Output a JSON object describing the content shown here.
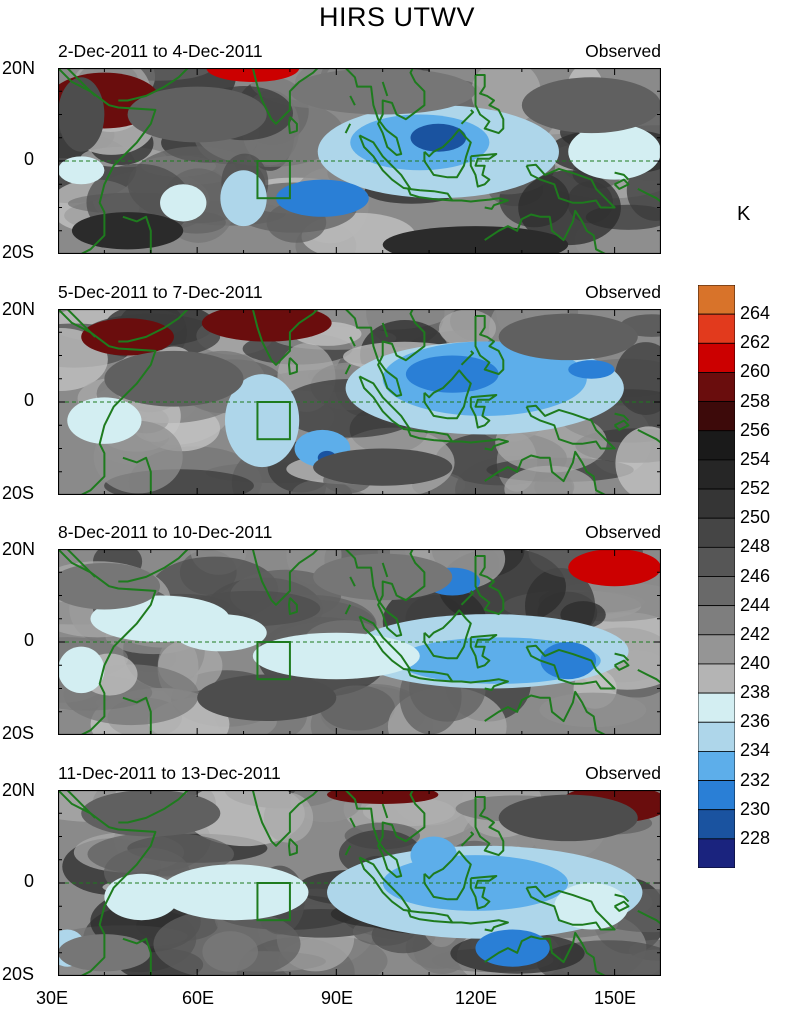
{
  "title": "HIRS UTWV",
  "panels": [
    {
      "date_range": "2-Dec-2011 to 4-Dec-2011",
      "tag": "Observed"
    },
    {
      "date_range": "5-Dec-2011 to 7-Dec-2011",
      "tag": "Observed"
    },
    {
      "date_range": "8-Dec-2011 to 10-Dec-2011",
      "tag": "Observed"
    },
    {
      "date_range": "11-Dec-2011 to 13-Dec-2011",
      "tag": "Observed"
    }
  ],
  "lat_ticks": [
    "20N",
    "0",
    "20S"
  ],
  "lon_ticks": [
    "30E",
    "60E",
    "90E",
    "120E",
    "150E"
  ],
  "colorbar": {
    "unit": "K",
    "labels": [
      "264",
      "262",
      "260",
      "258",
      "256",
      "254",
      "252",
      "250",
      "248",
      "246",
      "244",
      "242",
      "240",
      "238",
      "236",
      "234",
      "232",
      "230",
      "228"
    ],
    "colors": [
      "#d8732a",
      "#e23a1d",
      "#cc0000",
      "#6a0d0d",
      "#3d0a0a",
      "#1a1a1a",
      "#262626",
      "#353535",
      "#454545",
      "#565656",
      "#696969",
      "#7e7e7e",
      "#959595",
      "#b4b4b4",
      "#d3eef2",
      "#aed6ea",
      "#5daeea",
      "#2a7fd6",
      "#1a53a0",
      "#1a237e"
    ]
  },
  "map_style": {
    "coast_color": "#1e7b1e",
    "equator_dash": "dashed",
    "box": "70E-80E, 0-10S"
  }
}
